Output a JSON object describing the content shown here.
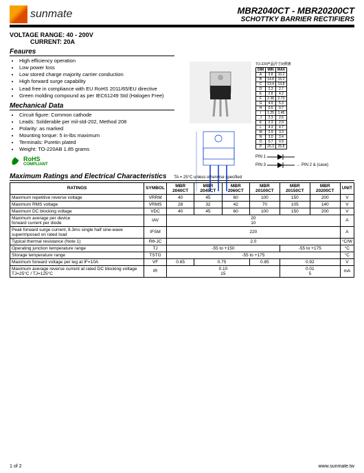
{
  "brand": "sunmate",
  "title_main": "MBR2040CT - MBR20200CT",
  "title_sub": "SCHOTTKY BARRIER RECTIFIERS",
  "voltage_range": "VOLTAGE  RANGE: 40 - 200V",
  "current": "CURRENT: 20A",
  "sections": {
    "features_title": "Feaures",
    "features": [
      "High efficiency operation",
      "Low power loss",
      "Low stored charge majority carrier conduction",
      "High forward surge capability",
      "Lead free in compliance with EU RoHS 2011/65/EU directive",
      "Green molding compound as per IEC61249 Std  (Halogen Free)"
    ],
    "mech_title": "Mechanical Data",
    "mech": [
      "Circuit figure: Common cathode",
      "Leads: Solderable per mil-std-202, Method 208",
      "Polarity: as marked",
      "Mounting torque: 5 in-lbs maximum",
      "Terminals: Puretin plated",
      "Weight: TO-220AB 1.85 grams"
    ]
  },
  "rohs": {
    "line1": "RoHS",
    "line2": "COMPLIANT"
  },
  "dimensions": {
    "title": "TO-220产品尺寸对照表",
    "headers": [
      "DIM",
      "MIN",
      "MAX"
    ],
    "rows": [
      [
        "A",
        "9.8",
        "10.2"
      ],
      [
        "B",
        "14.8",
        "15.2"
      ],
      [
        "C",
        "13.4",
        "13.8"
      ],
      [
        "D",
        "2.3",
        "2.7"
      ],
      [
        "E",
        "2.8",
        "4.2"
      ],
      [
        "F",
        "2.38",
        "2.73"
      ],
      [
        "G",
        "4.9",
        "5.3"
      ],
      [
        "H",
        "0.5",
        "0.7"
      ],
      [
        "I",
        "1.25",
        "1.45"
      ],
      [
        "J",
        "2.3",
        "2.6"
      ],
      [
        "K",
        "2.3",
        "2.9"
      ],
      [
        "L",
        "4.3",
        "4.7"
      ],
      [
        "M",
        "2.9",
        "3.3"
      ],
      [
        "N",
        "3.0",
        "3.4"
      ],
      [
        "O",
        "0.7",
        "0.9"
      ],
      [
        "P",
        "25.3",
        "25.8"
      ]
    ]
  },
  "pins": {
    "pin1": "PIN 1",
    "pin3": "PIN 3",
    "pin2": "PIN 2 & (case)"
  },
  "ratings_title": "Maximum Ratings and Electrical Characteristics",
  "ratings_cond": "TA = 25°C unless otherwise specified",
  "ratings": {
    "columns": [
      "RATINGS",
      "SYMBOL",
      "MBR 2040CT",
      "MBR 2045CT",
      "MBR 2060CT",
      "MBR 20100CT",
      "MBR 20150CT",
      "MBR 20200CT",
      "UNIT"
    ],
    "rows": [
      {
        "label": "Maximum repetitive reverse voltage",
        "sym": "VRRM",
        "vals": [
          "40",
          "45",
          "60",
          "100",
          "150",
          "200"
        ],
        "unit": "V"
      },
      {
        "label": "Maximum RMS voltage",
        "sym": "VRMS",
        "vals": [
          "28",
          "32",
          "42",
          "70",
          "105",
          "140"
        ],
        "unit": "V"
      },
      {
        "label": "Maximum DC blocking voltage",
        "sym": "VDC",
        "vals": [
          "40",
          "45",
          "60",
          "100",
          "150",
          "200"
        ],
        "unit": "V"
      },
      {
        "label": "Maximum average    per device\nforward  current    per diode",
        "sym": "IAV",
        "span6": "20\n10",
        "unit": "A"
      },
      {
        "label": "Peak forward surge current, 8.3ms single half sine-wave superimposed on rated load",
        "sym": "IFSM",
        "span6": "220",
        "unit": "A"
      },
      {
        "label": "Typical thermal resistance (Note 1)",
        "sym": "Rθ-JC",
        "span6": "2.0",
        "unit": "°C/W"
      },
      {
        "label": "Operating junction temperature range",
        "sym": "TJ",
        "span4": "-55 to +150",
        "span2": "-55 to +175",
        "unit": "°C"
      },
      {
        "label": "Storage temperature range",
        "sym": "TSTG",
        "span6": "-55 to +175",
        "unit": "°C"
      },
      {
        "label": "Maximum forward voltage per leg    at IF=10A",
        "sym": "VF",
        "v1": "0.65",
        "v2": "0.75",
        "v3": "0.85",
        "v45": "0.92",
        "unit": "V"
      },
      {
        "label": "Maximum average reverse current at rated DC blocking voltage   TJ=25°C / TJ=125°C",
        "sym": "IR",
        "span4_2line": "0.10\n15",
        "span2_2line": "0.01\n5",
        "unit": "mA"
      }
    ]
  },
  "footer": {
    "page": "1 of 2",
    "url": "www.sunmate.tw"
  }
}
